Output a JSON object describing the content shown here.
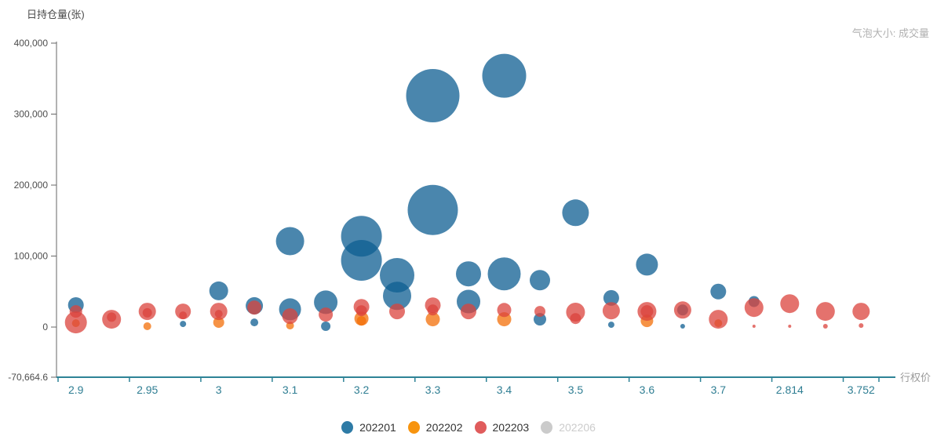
{
  "titles": {
    "y_axis": "日持仓量(张)",
    "bubble_hint": "气泡大小: 成交量",
    "x_axis": "行权价"
  },
  "colors": {
    "blue_series": "#0d5d91",
    "orange_series": "#f36f08",
    "red_series": "#db433c",
    "bubble_opacity": 0.75,
    "x_axis_line": "#2e8397",
    "x_tick_label": "#2f7e93",
    "y_axis_line": "#666666",
    "y_tick_label": "#4d4d4d",
    "legend_inactive": "#cccccc"
  },
  "legend": [
    {
      "label": "202201",
      "color": "#2e7ba6",
      "active": true
    },
    {
      "label": "202202",
      "color": "#f7940f",
      "active": true
    },
    {
      "label": "202203",
      "color": "#e05c5c",
      "active": true
    },
    {
      "label": "202206",
      "color": "#cbcbcb",
      "active": false
    }
  ],
  "chart_data": {
    "type": "scatter",
    "note": "bubble chart: x = strike price category, y = daily open interest (lots), bubble size = volume",
    "x_categories": [
      "2.9",
      "",
      "2.95",
      "",
      "3",
      "",
      "3.1",
      "",
      "3.2",
      "",
      "3.3",
      "",
      "3.4",
      "",
      "3.5",
      "",
      "3.6",
      "",
      "3.7",
      "",
      "2.814",
      "",
      "3.752"
    ],
    "x_visible_tick_labels": [
      "2.9",
      "2.95",
      "3",
      "3.1",
      "3.2",
      "3.3",
      "3.4",
      "3.5",
      "3.6",
      "3.7",
      "2.814",
      "3.752"
    ],
    "y_ticks": [
      {
        "label": "400,000",
        "value": 400000
      },
      {
        "label": "300,000",
        "value": 300000
      },
      {
        "label": "200,000",
        "value": 200000
      },
      {
        "label": "100,000",
        "value": 100000
      },
      {
        "label": "0",
        "value": 0
      },
      {
        "label": "-70,664.6",
        "value": -70664.6
      }
    ],
    "ylim": [
      -70664.6,
      400000
    ],
    "grid": false,
    "legend_position": "bottom",
    "series": [
      {
        "name": "202201",
        "points": [
          [
            0,
            31000,
            10
          ],
          [
            3,
            4400,
            4
          ],
          [
            4,
            51000,
            12
          ],
          [
            5,
            30000,
            11
          ],
          [
            5,
            6600,
            5
          ],
          [
            6,
            121000,
            18
          ],
          [
            6,
            25000,
            14
          ],
          [
            7,
            35000,
            15
          ],
          [
            7,
            1100,
            6
          ],
          [
            8,
            128000,
            26
          ],
          [
            8,
            94000,
            26
          ],
          [
            9,
            73000,
            22
          ],
          [
            9,
            44000,
            18
          ],
          [
            10,
            326000,
            34
          ],
          [
            10,
            165000,
            32
          ],
          [
            11,
            75000,
            16
          ],
          [
            11,
            36000,
            15
          ],
          [
            12,
            354000,
            28
          ],
          [
            12,
            75000,
            21
          ],
          [
            13,
            66000,
            13
          ],
          [
            13,
            11000,
            8
          ],
          [
            14,
            161000,
            17
          ],
          [
            15,
            41000,
            10
          ],
          [
            15,
            3300,
            4
          ],
          [
            16,
            88000,
            14
          ],
          [
            17,
            24000,
            7
          ],
          [
            17,
            1100,
            3
          ],
          [
            18,
            50000,
            10
          ],
          [
            19,
            36000,
            7
          ]
        ]
      },
      {
        "name": "202202",
        "points": [
          [
            0,
            5500,
            5
          ],
          [
            2,
            1100,
            5
          ],
          [
            4,
            6600,
            7
          ],
          [
            6,
            2200,
            5
          ],
          [
            8,
            12000,
            9
          ],
          [
            8,
            8800,
            6
          ],
          [
            10,
            11000,
            9
          ],
          [
            12,
            11000,
            9
          ],
          [
            16,
            8800,
            8
          ],
          [
            18,
            5500,
            5
          ]
        ]
      },
      {
        "name": "202203",
        "points": [
          [
            0,
            22000,
            8
          ],
          [
            0,
            6600,
            14
          ],
          [
            1,
            11000,
            12
          ],
          [
            1,
            14000,
            6
          ],
          [
            2,
            22000,
            11
          ],
          [
            2,
            20000,
            6
          ],
          [
            3,
            22000,
            10
          ],
          [
            3,
            16500,
            5
          ],
          [
            4,
            22000,
            11
          ],
          [
            4,
            18700,
            5
          ],
          [
            5,
            27500,
            9
          ],
          [
            6,
            15400,
            10
          ],
          [
            7,
            17600,
            9
          ],
          [
            8,
            28600,
            10
          ],
          [
            8,
            23000,
            7
          ],
          [
            9,
            22000,
            10
          ],
          [
            10,
            30800,
            10
          ],
          [
            10,
            24000,
            7
          ],
          [
            11,
            22000,
            10
          ],
          [
            12,
            24000,
            9
          ],
          [
            13,
            22000,
            7
          ],
          [
            14,
            21000,
            12
          ],
          [
            14,
            12000,
            7
          ],
          [
            15,
            23000,
            11
          ],
          [
            16,
            22000,
            12
          ],
          [
            16,
            22000,
            8
          ],
          [
            17,
            24000,
            11
          ],
          [
            18,
            11000,
            12
          ],
          [
            19,
            27500,
            12
          ],
          [
            19,
            1100,
            2
          ],
          [
            20,
            33000,
            12
          ],
          [
            20,
            1100,
            2
          ],
          [
            21,
            22000,
            12
          ],
          [
            21,
            1100,
            3
          ],
          [
            22,
            22000,
            11
          ],
          [
            22,
            2200,
            3
          ]
        ]
      },
      {
        "name": "202206",
        "points": []
      }
    ]
  }
}
